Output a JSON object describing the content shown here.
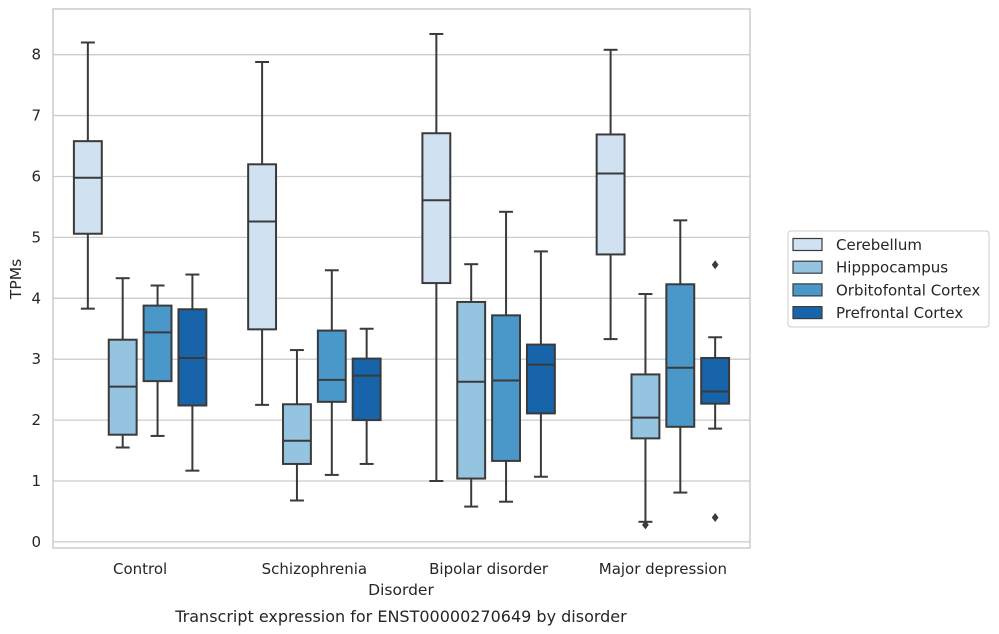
{
  "chart_data": {
    "type": "box",
    "title": "",
    "caption": "Transcript expression for ENST00000270649 by disorder",
    "xlabel": "Disorder",
    "ylabel": "TPMs",
    "ylim": [
      -0.1,
      8.75
    ],
    "yticks": [
      0,
      1,
      2,
      3,
      4,
      5,
      6,
      7,
      8
    ],
    "grid": "horizontal",
    "legend_position": "right",
    "categories": [
      "Control",
      "Schizophrenia",
      "Bipolar disorder",
      "Major depression"
    ],
    "series": [
      {
        "name": "Cerebellum",
        "color": "#d0e1f2",
        "boxes": [
          {
            "whislo": 3.83,
            "q1": 5.06,
            "med": 5.98,
            "q3": 6.58,
            "whishi": 8.2,
            "fliers": []
          },
          {
            "whislo": 2.25,
            "q1": 3.49,
            "med": 5.26,
            "q3": 6.2,
            "whishi": 7.88,
            "fliers": []
          },
          {
            "whislo": 1.0,
            "q1": 4.25,
            "med": 5.61,
            "q3": 6.71,
            "whishi": 8.34,
            "fliers": []
          },
          {
            "whislo": 3.33,
            "q1": 4.72,
            "med": 6.05,
            "q3": 6.69,
            "whishi": 8.08,
            "fliers": []
          }
        ]
      },
      {
        "name": "Hipppocampus",
        "color": "#94c4df",
        "boxes": [
          {
            "whislo": 1.55,
            "q1": 1.76,
            "med": 2.55,
            "q3": 3.32,
            "whishi": 4.33,
            "fliers": []
          },
          {
            "whislo": 0.68,
            "q1": 1.28,
            "med": 1.66,
            "q3": 2.26,
            "whishi": 3.15,
            "fliers": []
          },
          {
            "whislo": 0.58,
            "q1": 1.04,
            "med": 2.63,
            "q3": 3.94,
            "whishi": 4.56,
            "fliers": []
          },
          {
            "whislo": 0.33,
            "q1": 1.7,
            "med": 2.04,
            "q3": 2.75,
            "whishi": 4.07,
            "fliers": [
              0.28
            ]
          }
        ]
      },
      {
        "name": "Orbitofontal Cortex",
        "color": "#4a98c9",
        "boxes": [
          {
            "whislo": 1.74,
            "q1": 2.64,
            "med": 3.44,
            "q3": 3.88,
            "whishi": 4.21,
            "fliers": []
          },
          {
            "whislo": 1.1,
            "q1": 2.3,
            "med": 2.66,
            "q3": 3.47,
            "whishi": 4.46,
            "fliers": []
          },
          {
            "whislo": 0.66,
            "q1": 1.33,
            "med": 2.65,
            "q3": 3.72,
            "whishi": 5.42,
            "fliers": []
          },
          {
            "whislo": 0.81,
            "q1": 1.89,
            "med": 2.86,
            "q3": 4.23,
            "whishi": 5.28,
            "fliers": []
          }
        ]
      },
      {
        "name": "Prefrontal Cortex",
        "color": "#1764ab",
        "boxes": [
          {
            "whislo": 1.17,
            "q1": 2.24,
            "med": 3.02,
            "q3": 3.82,
            "whishi": 4.39,
            "fliers": []
          },
          {
            "whislo": 1.28,
            "q1": 2.0,
            "med": 2.73,
            "q3": 3.01,
            "whishi": 3.5,
            "fliers": []
          },
          {
            "whislo": 1.07,
            "q1": 2.11,
            "med": 2.91,
            "q3": 3.24,
            "whishi": 4.77,
            "fliers": []
          },
          {
            "whislo": 1.86,
            "q1": 2.27,
            "med": 2.47,
            "q3": 3.02,
            "whishi": 3.36,
            "fliers": [
              4.55,
              0.4
            ]
          }
        ]
      }
    ]
  }
}
